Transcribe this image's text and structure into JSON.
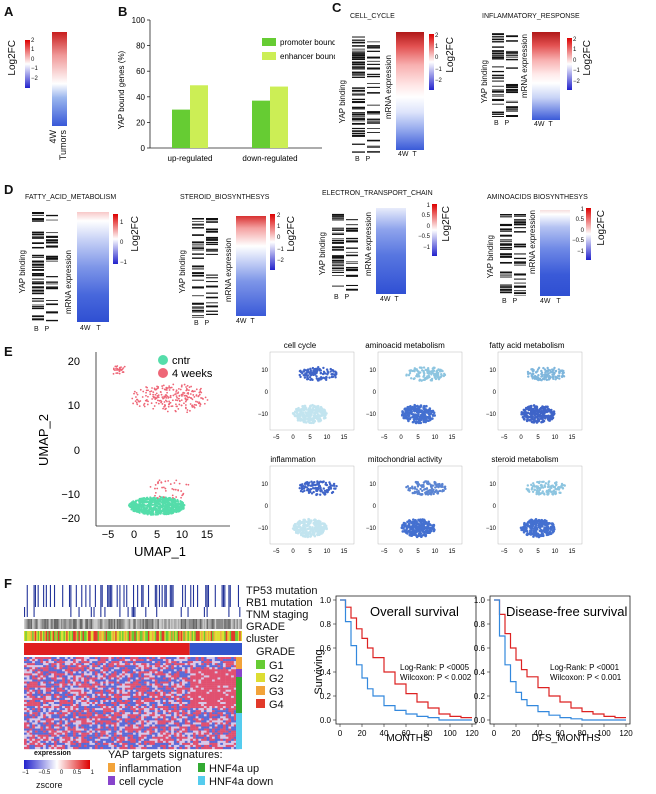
{
  "panels": {
    "a": "A",
    "b": "B",
    "c": "C",
    "d": "D",
    "e": "E",
    "f": "F"
  },
  "panel_a": {
    "ylabel": "Log2FC",
    "ticks": [
      "2",
      "1",
      "0",
      "−1",
      "−2"
    ],
    "xlabel_1": "4W",
    "xlabel_2": "Tumors"
  },
  "panel_b": {
    "chart_data": {
      "type": "bar",
      "categories": [
        "up-regulated",
        "down-regulated"
      ],
      "series": [
        {
          "name": "promoter bound",
          "values": [
            30,
            37
          ],
          "color": "#66cc33"
        },
        {
          "name": "enhancer bound",
          "values": [
            49,
            48
          ],
          "color": "#ccee55"
        }
      ],
      "ylabel": "YAP bound genes (%)",
      "ylim": [
        0,
        100
      ],
      "yticks": [
        "0",
        "20",
        "40",
        "60",
        "80",
        "100"
      ]
    }
  },
  "panel_c": [
    {
      "title": "CELL_CYCLE",
      "binding": "YAP binding",
      "expr": "mRNA expression",
      "bp": [
        "B",
        "P"
      ],
      "wt": [
        "4W",
        "T"
      ],
      "cbar": "Log2FC",
      "ticks": [
        "2",
        "1",
        "0",
        "−1",
        "−2"
      ]
    },
    {
      "title": "INFLAMMATORY_RESPONSE",
      "binding": "YAP binding",
      "expr": "mRNA expression",
      "bp": [
        "B",
        "P"
      ],
      "wt": [
        "4W",
        "T"
      ],
      "cbar": "Log2FC",
      "ticks": [
        "2",
        "1",
        "0",
        "−1",
        "−2"
      ]
    }
  ],
  "panel_d": [
    {
      "title": "FATTY_ACID_METABOLISM",
      "binding": "YAP binding",
      "expr": "mRNA expression",
      "bp": [
        "B",
        "P"
      ],
      "wt": [
        "4W",
        "T"
      ],
      "cbar": "Log2FC",
      "ticks": [
        "1",
        "0",
        "−1"
      ]
    },
    {
      "title": "STEROID_BIOSYNTHESYS",
      "binding": "YAP binding",
      "expr": "mRNA expression",
      "bp": [
        "B",
        "P"
      ],
      "wt": [
        "4W",
        "T"
      ],
      "cbar": "Log2FC",
      "ticks": [
        "2",
        "1",
        "0",
        "−1",
        "−2"
      ]
    },
    {
      "title": "ELECTRON_TRANSPORT_CHAIN",
      "binding": "YAP binding",
      "expr": "mRNA expression",
      "bp": [
        "B",
        "P"
      ],
      "wt": [
        "4W",
        "T"
      ],
      "cbar": "Log2FC",
      "ticks": [
        "1",
        "0.5",
        "0",
        "−0.5",
        "−1"
      ]
    },
    {
      "title": "AMINOACIDS BIOSYNTHESYS",
      "binding": "YAP binding",
      "expr": "mRNA expression",
      "bp": [
        "B",
        "P"
      ],
      "wt": [
        "4W",
        "T"
      ],
      "cbar": "Log2FC",
      "ticks": [
        "1",
        "0.5",
        "0",
        "−0.5",
        "−1"
      ]
    }
  ],
  "panel_e": {
    "umap": {
      "xlabel": "UMAP_1",
      "ylabel": "UMAP_2",
      "xticks": [
        "−5",
        "0",
        "5",
        "10",
        "15"
      ],
      "yticks": [
        "20",
        "10",
        "0",
        "−10",
        "−20"
      ]
    },
    "legend": [
      {
        "label": "cntr",
        "color": "#55ddaa"
      },
      {
        "label": "4 weeks",
        "color": "#ee6677"
      }
    ],
    "minis": [
      {
        "title": "cell cycle"
      },
      {
        "title": "aminoacid metabolism"
      },
      {
        "title": "fatty acid metabolism"
      },
      {
        "title": "inflammation"
      },
      {
        "title": "mitochondrial activity"
      },
      {
        "title": "steroid metabolism"
      }
    ],
    "mini_xticks": [
      "−5",
      "0",
      "5",
      "10",
      "15"
    ],
    "mini_yticks": [
      "10",
      "0",
      "−10"
    ]
  },
  "panel_f": {
    "tracks": [
      "TP53 mutation",
      "RB1 mutation",
      "TNM staging",
      "GRADE",
      "cluster"
    ],
    "grade_title": "GRADE",
    "grade_legend": [
      {
        "label": "G1",
        "color": "#66cc33"
      },
      {
        "label": "G2",
        "color": "#dddd33"
      },
      {
        "label": "G3",
        "color": "#f2a33a"
      },
      {
        "label": "G4",
        "color": "#e23a2a"
      }
    ],
    "expr_title": "expression",
    "expr_ticks": [
      "−1",
      "−0.5",
      "0",
      "0.5",
      "1"
    ],
    "zscore": "zscore",
    "sig_title": "YAP targets signatures:",
    "signatures": [
      {
        "label": "inflammation",
        "color": "#f2a33a"
      },
      {
        "label": "HNF4a up",
        "color": "#33aa33"
      },
      {
        "label": "cell cycle",
        "color": "#8844cc"
      },
      {
        "label": "HNF4a down",
        "color": "#55ccee"
      }
    ],
    "survival": [
      {
        "title": "Overall survival",
        "ylabel": "Surviving",
        "xlabel": "MONTHS",
        "stat1": "Log-Rank: P <0005",
        "stat2": "Wilcoxon:  P < 0.002",
        "chart_data": {
          "type": "line",
          "x": [
            0,
            5,
            10,
            15,
            20,
            25,
            30,
            40,
            50,
            60,
            70,
            80,
            90,
            100,
            110,
            120
          ],
          "series": [
            {
              "name": "red",
              "color": "#dd2222",
              "values": [
                1.0,
                0.94,
                0.85,
                0.76,
                0.68,
                0.6,
                0.52,
                0.4,
                0.3,
                0.22,
                0.15,
                0.1,
                0.05,
                0.03,
                0.02,
                0.02
              ]
            },
            {
              "name": "blue",
              "color": "#3388dd",
              "values": [
                1.0,
                0.82,
                0.62,
                0.46,
                0.35,
                0.26,
                0.2,
                0.12,
                0.08,
                0.05,
                0.03,
                0.02,
                0.0,
                0.0,
                0.0,
                0.0
              ]
            }
          ],
          "ylim": [
            0,
            1
          ],
          "xlim": [
            0,
            120
          ]
        }
      },
      {
        "title": "Disease-free survival",
        "ylabel": "",
        "xlabel": "DFS_MONTHS",
        "stat1": "Log-Rank: P <0001",
        "stat2": "Wilcoxon:  P < 0.001",
        "chart_data": {
          "type": "line",
          "x": [
            0,
            5,
            10,
            15,
            20,
            25,
            30,
            40,
            50,
            60,
            70,
            80,
            90,
            100,
            110,
            120
          ],
          "series": [
            {
              "name": "red",
              "color": "#dd2222",
              "values": [
                1.0,
                0.88,
                0.72,
                0.6,
                0.5,
                0.42,
                0.36,
                0.27,
                0.2,
                0.15,
                0.1,
                0.07,
                0.05,
                0.03,
                0.02,
                0.02
              ]
            },
            {
              "name": "blue",
              "color": "#3388dd",
              "values": [
                1.0,
                0.7,
                0.46,
                0.32,
                0.23,
                0.17,
                0.12,
                0.07,
                0.04,
                0.02,
                0.01,
                0.0,
                0.0,
                0.0,
                0.0,
                0.0
              ]
            }
          ],
          "ylim": [
            0,
            1
          ],
          "xlim": [
            0,
            120
          ]
        }
      }
    ],
    "yticks": [
      "0.0",
      "0.2",
      "0.4",
      "0.6",
      "0.8",
      "1.0"
    ],
    "xticks": [
      "0",
      "20",
      "40",
      "60",
      "80",
      "100",
      "120"
    ]
  }
}
